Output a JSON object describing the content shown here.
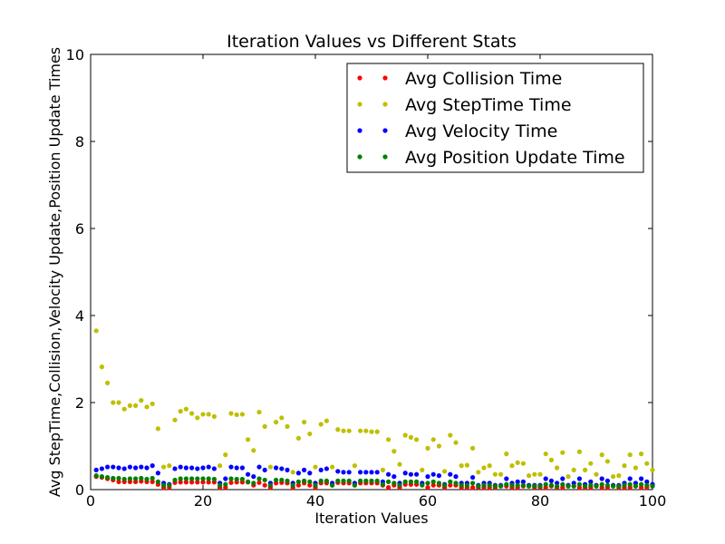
{
  "chart_data": {
    "type": "scatter",
    "title": "Iteration Values vs Different Stats",
    "xlabel": "Iteration Values",
    "ylabel": "Avg StepTime,Collision,Velocity Update,Position Update Times",
    "xlim": [
      0,
      100
    ],
    "ylim": [
      0,
      10
    ],
    "xticks": [
      0,
      20,
      40,
      60,
      80,
      100
    ],
    "yticks": [
      0,
      2,
      4,
      6,
      8,
      10
    ],
    "grid": false,
    "legend_position": "top-right",
    "x": [
      1,
      2,
      3,
      4,
      5,
      6,
      7,
      8,
      9,
      10,
      11,
      12,
      13,
      14,
      15,
      16,
      17,
      18,
      19,
      20,
      21,
      22,
      23,
      24,
      25,
      26,
      27,
      28,
      29,
      30,
      31,
      32,
      33,
      34,
      35,
      36,
      37,
      38,
      39,
      40,
      41,
      42,
      43,
      44,
      45,
      46,
      47,
      48,
      49,
      50,
      51,
      52,
      53,
      54,
      55,
      56,
      57,
      58,
      59,
      60,
      61,
      62,
      63,
      64,
      65,
      66,
      67,
      68,
      69,
      70,
      71,
      72,
      73,
      74,
      75,
      76,
      77,
      78,
      79,
      80,
      81,
      82,
      83,
      84,
      85,
      86,
      87,
      88,
      89,
      90,
      91,
      92,
      93,
      94,
      95,
      96,
      97,
      98,
      99,
      100
    ],
    "series": [
      {
        "name": "Avg Collision Time",
        "color": "#ff0000",
        "values": [
          0.3,
          0.28,
          0.25,
          0.22,
          0.18,
          0.18,
          0.18,
          0.18,
          0.19,
          0.18,
          0.18,
          0.12,
          0.05,
          0.05,
          0.16,
          0.17,
          0.17,
          0.17,
          0.17,
          0.17,
          0.17,
          0.17,
          0.05,
          0.05,
          0.16,
          0.17,
          0.17,
          0.17,
          0.1,
          0.16,
          0.1,
          0.05,
          0.15,
          0.16,
          0.15,
          0.05,
          0.1,
          0.15,
          0.1,
          0.05,
          0.15,
          0.15,
          0.1,
          0.16,
          0.15,
          0.15,
          0.1,
          0.15,
          0.15,
          0.15,
          0.15,
          0.1,
          0.05,
          0.1,
          0.05,
          0.12,
          0.12,
          0.12,
          0.12,
          0.05,
          0.1,
          0.1,
          0.05,
          0.1,
          0.1,
          0.05,
          0.05,
          0.05,
          0.05,
          0.05,
          0.05,
          0.05,
          0.08,
          0.08,
          0.05,
          0.05,
          0.08,
          0.08,
          0.05,
          0.05,
          0.05,
          0.08,
          0.05,
          0.05,
          0.08,
          0.08,
          0.05,
          0.05,
          0.05,
          0.08,
          0.05,
          0.05,
          0.08,
          0.05,
          0.05,
          0.05,
          0.08,
          0.05,
          0.05,
          0.08
        ]
      },
      {
        "name": "Avg StepTime Time",
        "color": "#bfbf00",
        "values": [
          3.65,
          2.82,
          2.45,
          2.0,
          2.0,
          1.85,
          1.93,
          1.93,
          2.05,
          1.9,
          1.97,
          1.4,
          0.52,
          0.55,
          1.6,
          1.8,
          1.85,
          1.75,
          1.65,
          1.73,
          1.73,
          1.68,
          0.55,
          0.8,
          1.75,
          1.72,
          1.73,
          1.15,
          0.9,
          1.78,
          1.45,
          0.52,
          1.55,
          1.65,
          1.45,
          0.4,
          1.18,
          1.55,
          1.28,
          0.52,
          1.5,
          1.58,
          0.52,
          1.38,
          1.35,
          1.35,
          0.55,
          1.35,
          1.35,
          1.33,
          1.33,
          0.45,
          1.15,
          0.88,
          0.58,
          1.25,
          1.2,
          1.15,
          0.45,
          0.95,
          1.15,
          1.0,
          0.42,
          1.25,
          1.08,
          0.55,
          0.56,
          0.95,
          0.4,
          0.5,
          0.55,
          0.35,
          0.35,
          0.82,
          0.55,
          0.62,
          0.6,
          0.32,
          0.35,
          0.35,
          0.82,
          0.68,
          0.5,
          0.85,
          0.3,
          0.45,
          0.87,
          0.45,
          0.6,
          0.35,
          0.8,
          0.65,
          0.3,
          0.32,
          0.55,
          0.8,
          0.5,
          0.82,
          0.6,
          0.45
        ]
      },
      {
        "name": "Avg Velocity Time",
        "color": "#0000ff",
        "values": [
          0.45,
          0.48,
          0.52,
          0.52,
          0.5,
          0.48,
          0.52,
          0.5,
          0.52,
          0.5,
          0.55,
          0.38,
          0.15,
          0.12,
          0.48,
          0.52,
          0.5,
          0.5,
          0.48,
          0.5,
          0.52,
          0.48,
          0.15,
          0.25,
          0.52,
          0.5,
          0.5,
          0.35,
          0.3,
          0.52,
          0.45,
          0.15,
          0.5,
          0.48,
          0.45,
          0.15,
          0.38,
          0.45,
          0.38,
          0.15,
          0.45,
          0.48,
          0.15,
          0.42,
          0.4,
          0.4,
          0.15,
          0.4,
          0.4,
          0.4,
          0.4,
          0.18,
          0.35,
          0.3,
          0.15,
          0.38,
          0.35,
          0.35,
          0.15,
          0.3,
          0.35,
          0.32,
          0.12,
          0.35,
          0.3,
          0.15,
          0.15,
          0.28,
          0.1,
          0.15,
          0.15,
          0.1,
          0.1,
          0.25,
          0.15,
          0.18,
          0.18,
          0.1,
          0.1,
          0.1,
          0.25,
          0.2,
          0.15,
          0.25,
          0.1,
          0.15,
          0.25,
          0.12,
          0.18,
          0.1,
          0.25,
          0.2,
          0.1,
          0.1,
          0.15,
          0.25,
          0.15,
          0.25,
          0.18,
          0.12
        ]
      },
      {
        "name": "Avg Position Update Time",
        "color": "#007f00",
        "values": [
          0.32,
          0.3,
          0.28,
          0.26,
          0.26,
          0.24,
          0.25,
          0.25,
          0.26,
          0.24,
          0.26,
          0.18,
          0.1,
          0.1,
          0.22,
          0.25,
          0.25,
          0.25,
          0.25,
          0.25,
          0.25,
          0.24,
          0.1,
          0.12,
          0.25,
          0.24,
          0.24,
          0.18,
          0.15,
          0.25,
          0.22,
          0.1,
          0.22,
          0.22,
          0.2,
          0.1,
          0.18,
          0.2,
          0.18,
          0.1,
          0.2,
          0.2,
          0.1,
          0.2,
          0.2,
          0.2,
          0.1,
          0.2,
          0.2,
          0.2,
          0.2,
          0.12,
          0.18,
          0.15,
          0.1,
          0.18,
          0.18,
          0.18,
          0.1,
          0.15,
          0.18,
          0.15,
          0.1,
          0.18,
          0.15,
          0.1,
          0.1,
          0.15,
          0.08,
          0.1,
          0.1,
          0.08,
          0.08,
          0.12,
          0.1,
          0.1,
          0.1,
          0.08,
          0.08,
          0.08,
          0.12,
          0.1,
          0.08,
          0.12,
          0.08,
          0.08,
          0.12,
          0.08,
          0.1,
          0.08,
          0.12,
          0.1,
          0.08,
          0.08,
          0.1,
          0.12,
          0.08,
          0.12,
          0.1,
          0.08
        ]
      }
    ]
  }
}
